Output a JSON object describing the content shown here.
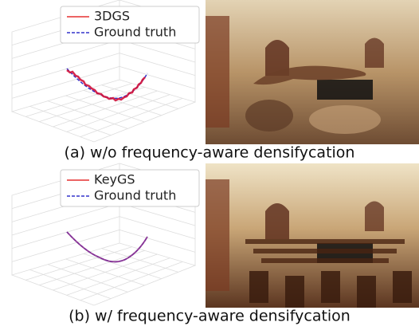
{
  "panels": [
    {
      "legend": [
        "3DGS",
        "Ground truth"
      ],
      "caption": "(a) w/o frequency-aware densifycation"
    },
    {
      "legend": [
        "KeyGS",
        "Ground truth"
      ],
      "caption": "(b) w/ frequency-aware densifycation"
    }
  ]
}
